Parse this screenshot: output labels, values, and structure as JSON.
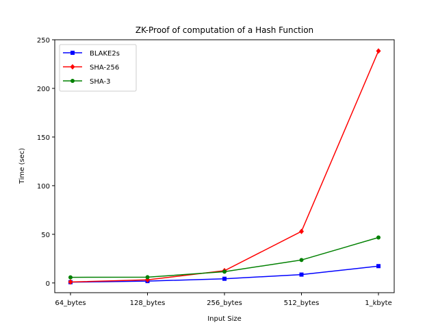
{
  "chart_data": {
    "type": "line",
    "title": "ZK-Proof of computation of a Hash Function",
    "xlabel": "Input Size",
    "ylabel": "Time (sec)",
    "categories": [
      "64_bytes",
      "128_bytes",
      "256_bytes",
      "512_bytes",
      "1_kbyte"
    ],
    "ylim": [
      -10,
      250
    ],
    "yticks": [
      0,
      50,
      100,
      150,
      200,
      250
    ],
    "grid": false,
    "legend_position": "top-left",
    "series": [
      {
        "name": "BLAKE2s",
        "color": "#0000ff",
        "marker": "square",
        "values": [
          0.8,
          1.9,
          4.3,
          8.6,
          17.3
        ]
      },
      {
        "name": "SHA-256",
        "color": "#ff0000",
        "marker": "diamond",
        "values": [
          1.0,
          3.2,
          12.6,
          53.0,
          238.5
        ]
      },
      {
        "name": "SHA-3",
        "color": "#008000",
        "marker": "circle",
        "values": [
          5.8,
          5.9,
          11.6,
          23.6,
          46.7
        ]
      }
    ]
  }
}
